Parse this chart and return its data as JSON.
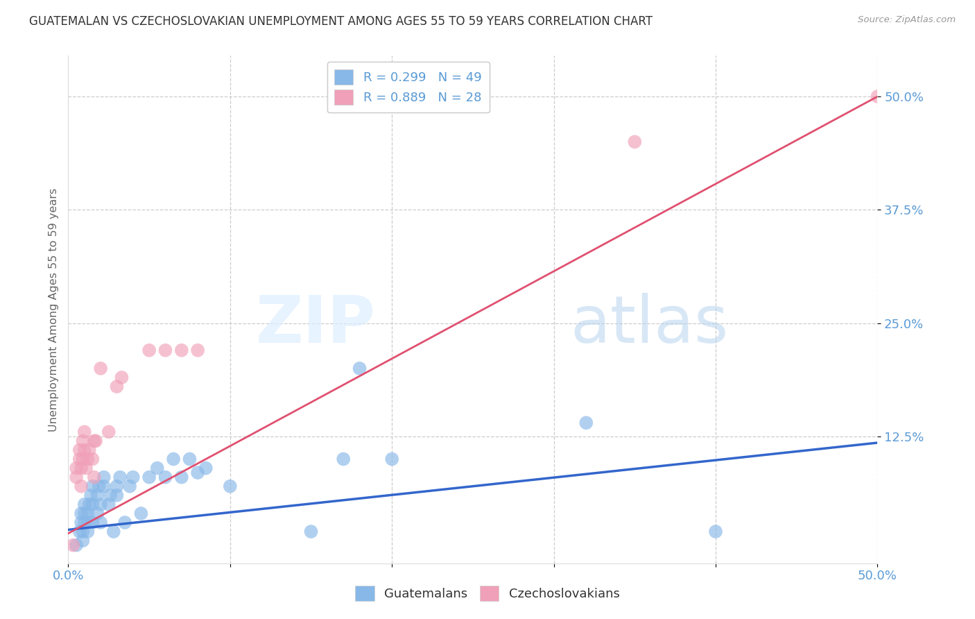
{
  "title": "GUATEMALAN VS CZECHOSLOVAKIAN UNEMPLOYMENT AMONG AGES 55 TO 59 YEARS CORRELATION CHART",
  "source": "Source: ZipAtlas.com",
  "ylabel": "Unemployment Among Ages 55 to 59 years",
  "ytick_labels": [
    "12.5%",
    "25.0%",
    "37.5%",
    "50.0%"
  ],
  "ytick_values": [
    0.125,
    0.25,
    0.375,
    0.5
  ],
  "xlim": [
    0.0,
    0.5
  ],
  "ylim": [
    -0.015,
    0.545
  ],
  "watermark_zip": "ZIP",
  "watermark_atlas": "atlas",
  "legend_blue_label": "R = 0.299   N = 49",
  "legend_pink_label": "R = 0.889   N = 28",
  "legend_bottom_guatemalans": "Guatemalans",
  "legend_bottom_czechoslovakians": "Czechoslovakians",
  "blue_color": "#88b8e8",
  "pink_color": "#f0a0b8",
  "blue_line_color": "#3366cc",
  "pink_line_color": "#e05070",
  "blue_scatter": [
    [
      0.005,
      0.005
    ],
    [
      0.007,
      0.02
    ],
    [
      0.008,
      0.03
    ],
    [
      0.008,
      0.04
    ],
    [
      0.009,
      0.01
    ],
    [
      0.009,
      0.02
    ],
    [
      0.01,
      0.03
    ],
    [
      0.01,
      0.04
    ],
    [
      0.01,
      0.05
    ],
    [
      0.012,
      0.02
    ],
    [
      0.012,
      0.03
    ],
    [
      0.012,
      0.04
    ],
    [
      0.013,
      0.05
    ],
    [
      0.014,
      0.06
    ],
    [
      0.015,
      0.03
    ],
    [
      0.015,
      0.05
    ],
    [
      0.015,
      0.07
    ],
    [
      0.018,
      0.04
    ],
    [
      0.018,
      0.06
    ],
    [
      0.019,
      0.07
    ],
    [
      0.02,
      0.03
    ],
    [
      0.02,
      0.05
    ],
    [
      0.022,
      0.07
    ],
    [
      0.022,
      0.08
    ],
    [
      0.025,
      0.05
    ],
    [
      0.026,
      0.06
    ],
    [
      0.028,
      0.02
    ],
    [
      0.03,
      0.06
    ],
    [
      0.03,
      0.07
    ],
    [
      0.032,
      0.08
    ],
    [
      0.035,
      0.03
    ],
    [
      0.038,
      0.07
    ],
    [
      0.04,
      0.08
    ],
    [
      0.045,
      0.04
    ],
    [
      0.05,
      0.08
    ],
    [
      0.055,
      0.09
    ],
    [
      0.06,
      0.08
    ],
    [
      0.065,
      0.1
    ],
    [
      0.07,
      0.08
    ],
    [
      0.075,
      0.1
    ],
    [
      0.08,
      0.085
    ],
    [
      0.085,
      0.09
    ],
    [
      0.1,
      0.07
    ],
    [
      0.15,
      0.02
    ],
    [
      0.17,
      0.1
    ],
    [
      0.18,
      0.2
    ],
    [
      0.2,
      0.1
    ],
    [
      0.32,
      0.14
    ],
    [
      0.4,
      0.02
    ]
  ],
  "pink_scatter": [
    [
      0.003,
      0.005
    ],
    [
      0.005,
      0.08
    ],
    [
      0.005,
      0.09
    ],
    [
      0.007,
      0.1
    ],
    [
      0.007,
      0.11
    ],
    [
      0.008,
      0.07
    ],
    [
      0.008,
      0.09
    ],
    [
      0.009,
      0.1
    ],
    [
      0.009,
      0.12
    ],
    [
      0.01,
      0.11
    ],
    [
      0.01,
      0.13
    ],
    [
      0.011,
      0.09
    ],
    [
      0.012,
      0.1
    ],
    [
      0.013,
      0.11
    ],
    [
      0.015,
      0.1
    ],
    [
      0.016,
      0.08
    ],
    [
      0.016,
      0.12
    ],
    [
      0.017,
      0.12
    ],
    [
      0.02,
      0.2
    ],
    [
      0.025,
      0.13
    ],
    [
      0.03,
      0.18
    ],
    [
      0.033,
      0.19
    ],
    [
      0.05,
      0.22
    ],
    [
      0.06,
      0.22
    ],
    [
      0.07,
      0.22
    ],
    [
      0.08,
      0.22
    ],
    [
      0.35,
      0.45
    ],
    [
      0.5,
      0.5
    ]
  ],
  "blue_line_x": [
    0.0,
    0.5
  ],
  "blue_line_y": [
    0.022,
    0.118
  ],
  "pink_line_x": [
    0.0,
    0.5
  ],
  "pink_line_y": [
    0.018,
    0.5
  ],
  "background_color": "#ffffff",
  "grid_color": "#cccccc"
}
